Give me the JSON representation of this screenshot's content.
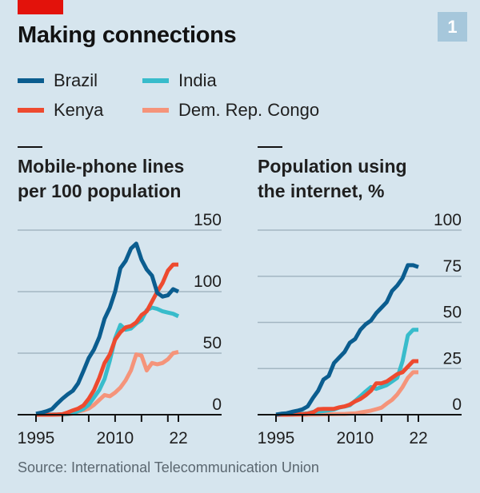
{
  "header": {
    "title": "Making connections",
    "badge": "1"
  },
  "legend": [
    {
      "label": "Brazil",
      "color": "#0b5d8f"
    },
    {
      "label": "India",
      "color": "#38bccb"
    },
    {
      "label": "Kenya",
      "color": "#ee4a2f"
    },
    {
      "label": "Dem. Rep. Congo",
      "color": "#f5947a"
    }
  ],
  "source": "Source: International Telecommunication Union",
  "chart_data": [
    {
      "type": "line",
      "title": "Mobile-phone lines per 100 population",
      "title_lines": [
        "Mobile-phone lines",
        "per 100 population"
      ],
      "xlabel": "",
      "ylabel": "",
      "xlim": [
        1995,
        2022
      ],
      "ylim": [
        0,
        150
      ],
      "yticks": [
        0,
        50,
        100,
        150
      ],
      "xticks": [
        1995,
        2000,
        2005,
        2010,
        2015,
        2020,
        2022
      ],
      "xtick_labels": [
        {
          "year": 1995,
          "label": "1995"
        },
        {
          "year": 2010,
          "label": "2010"
        },
        {
          "year": 2022,
          "label": "22"
        }
      ],
      "grid": true,
      "x": [
        1995,
        1996,
        1997,
        1998,
        1999,
        2000,
        2001,
        2002,
        2003,
        2004,
        2005,
        2006,
        2007,
        2008,
        2009,
        2010,
        2011,
        2012,
        2013,
        2014,
        2015,
        2016,
        2017,
        2018,
        2019,
        2020,
        2021,
        2022
      ],
      "series": [
        {
          "name": "Dem. Rep. Congo",
          "color": "#f5947a",
          "values": [
            0,
            0,
            0,
            0,
            0,
            0,
            0.3,
            1,
            2.5,
            3.5,
            5,
            8,
            12,
            16,
            15,
            18,
            22,
            28,
            36,
            49,
            48,
            36,
            42,
            41,
            42,
            45,
            50,
            51
          ]
        },
        {
          "name": "India",
          "color": "#38bccb",
          "values": [
            0,
            0,
            0,
            0.1,
            0.2,
            0.3,
            0.6,
            1.2,
            3,
            4.7,
            8,
            14,
            20,
            29,
            44,
            62,
            73,
            69,
            70,
            74,
            77,
            85,
            87,
            86,
            84,
            83,
            82,
            80
          ]
        },
        {
          "name": "Kenya",
          "color": "#ee4a2f",
          "values": [
            0,
            0,
            0,
            0,
            0.1,
            0.4,
            1.8,
            3.5,
            5,
            7.5,
            13,
            20,
            30,
            42,
            49,
            61,
            67,
            71,
            72,
            75,
            81,
            84,
            92,
            100,
            107,
            117,
            122,
            122
          ]
        },
        {
          "name": "Brazil",
          "color": "#0b5d8f",
          "values": [
            0.8,
            1.6,
            2.8,
            4.5,
            8.9,
            13,
            16.5,
            19.5,
            25.5,
            35.5,
            46,
            53,
            63,
            78,
            87,
            100,
            119,
            125,
            135,
            139,
            126,
            118,
            113,
            99,
            96,
            97,
            102,
            100
          ]
        }
      ]
    },
    {
      "type": "line",
      "title": "Population using the internet, %",
      "title_lines": [
        "Population using",
        "the internet, %"
      ],
      "xlabel": "",
      "ylabel": "",
      "xlim": [
        1995,
        2022
      ],
      "ylim": [
        0,
        100
      ],
      "yticks": [
        0,
        25,
        50,
        75,
        100
      ],
      "xticks": [
        1995,
        2000,
        2005,
        2010,
        2015,
        2020,
        2022
      ],
      "xtick_labels": [
        {
          "year": 1995,
          "label": "1995"
        },
        {
          "year": 2010,
          "label": "2010"
        },
        {
          "year": 2022,
          "label": "22"
        }
      ],
      "grid": true,
      "x": [
        1995,
        1996,
        1997,
        1998,
        1999,
        2000,
        2001,
        2002,
        2003,
        2004,
        2005,
        2006,
        2007,
        2008,
        2009,
        2010,
        2011,
        2012,
        2013,
        2014,
        2015,
        2016,
        2017,
        2018,
        2019,
        2020,
        2021,
        2022
      ],
      "series": [
        {
          "name": "Dem. Rep. Congo",
          "color": "#f5947a",
          "values": [
            0,
            0,
            0,
            0,
            0,
            0,
            0,
            0.1,
            0.1,
            0.2,
            0.2,
            0.3,
            0.4,
            0.4,
            0.6,
            0.7,
            1.2,
            1.7,
            2.2,
            3,
            3.8,
            6,
            8,
            11,
            15,
            20,
            23,
            23
          ]
        },
        {
          "name": "India",
          "color": "#38bccb",
          "values": [
            0,
            0,
            0.1,
            0.1,
            0.3,
            0.5,
            0.7,
            1.5,
            1.7,
            2,
            2.4,
            2.8,
            3.9,
            4.4,
            5.1,
            7.5,
            10,
            12.6,
            15,
            14,
            15,
            16,
            18,
            20,
            29,
            43,
            46,
            46
          ]
        },
        {
          "name": "Kenya",
          "color": "#ee4a2f",
          "values": [
            0,
            0,
            0,
            0.1,
            0.2,
            0.3,
            0.6,
            1.2,
            3,
            3.1,
            3.1,
            3.2,
            4,
            4.5,
            5.5,
            7.2,
            8.5,
            10.5,
            13,
            17,
            17,
            18,
            20,
            22,
            23,
            26,
            29,
            29
          ]
        },
        {
          "name": "Brazil",
          "color": "#0b5d8f",
          "values": [
            0.1,
            0.5,
            0.8,
            1.5,
            2.1,
            2.9,
            4.5,
            9,
            13,
            19,
            21,
            28,
            31,
            34,
            39,
            41,
            46,
            49,
            51,
            55,
            58,
            61,
            67,
            70,
            74,
            81,
            81,
            80
          ]
        }
      ]
    }
  ]
}
